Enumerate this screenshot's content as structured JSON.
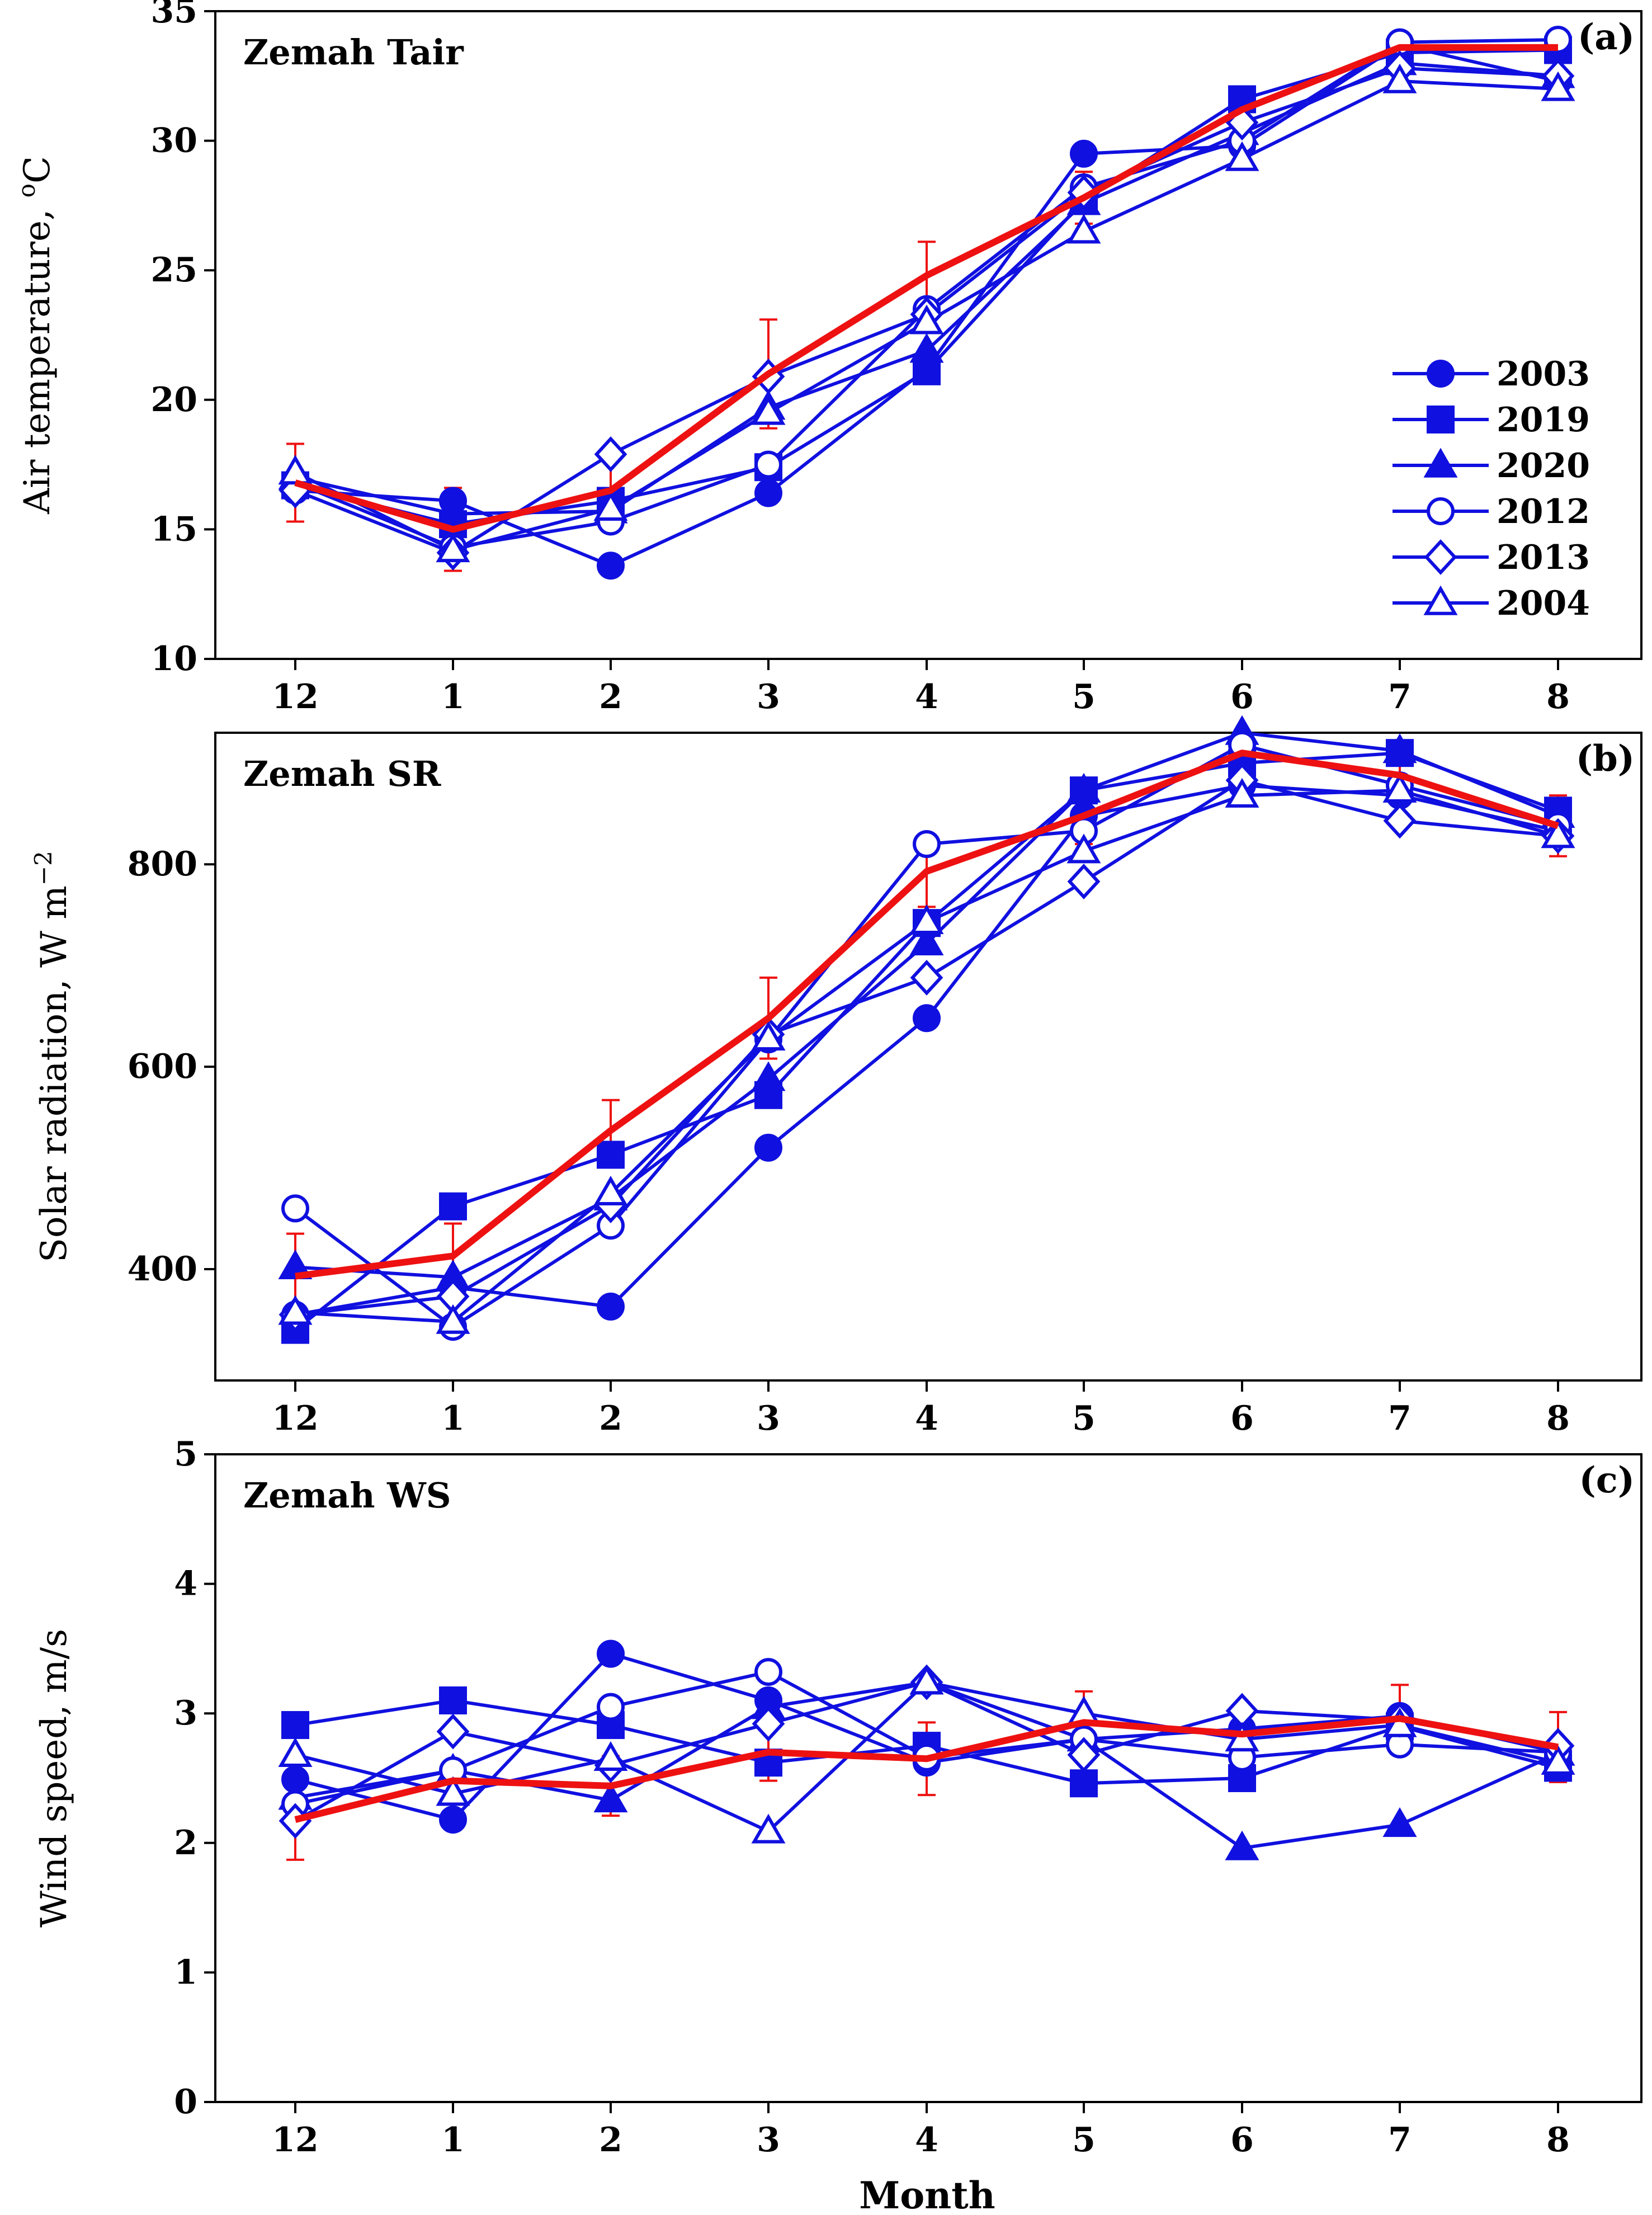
{
  "figure": {
    "x_title": "Month"
  },
  "legend": [
    {
      "label": "2003",
      "marker": "circle",
      "filled": true
    },
    {
      "label": "2019",
      "marker": "square",
      "filled": true
    },
    {
      "label": "2020",
      "marker": "triangle",
      "filled": true
    },
    {
      "label": "2012",
      "marker": "circle",
      "filled": false
    },
    {
      "label": "2013",
      "marker": "diamond",
      "filled": false
    },
    {
      "label": "2004",
      "marker": "triangle",
      "filled": false
    }
  ],
  "colors": {
    "series": "#1010e0",
    "mean": "#ee1111",
    "axis": "#000000"
  },
  "chart_data": [
    {
      "type": "line",
      "panel_label": "(a)",
      "title": "Zemah  Tair",
      "ylabel_main": "Air temperature, ",
      "ylabel_sup": "o",
      "ylabel_tail": "C",
      "categories": [
        "12",
        "1",
        "2",
        "3",
        "4",
        "5",
        "6",
        "7",
        "8"
      ],
      "ylim": [
        10,
        35
      ],
      "yticks": [
        10,
        15,
        20,
        25,
        30,
        35
      ],
      "series": [
        {
          "name": "2003",
          "values": [
            16.5,
            16.1,
            13.6,
            16.4,
            21.2,
            29.5,
            29.8,
            33.7,
            32.3
          ]
        },
        {
          "name": "2019",
          "values": [
            16.7,
            15.2,
            16.1,
            17.4,
            21.1,
            27.7,
            31.6,
            33.4,
            33.5
          ]
        },
        {
          "name": "2020",
          "values": [
            17.0,
            15.6,
            15.7,
            19.7,
            21.9,
            27.6,
            30.3,
            33.0,
            32.5
          ]
        },
        {
          "name": "2012",
          "values": [
            16.8,
            14.3,
            15.3,
            17.5,
            23.5,
            28.2,
            30.0,
            33.8,
            33.9
          ]
        },
        {
          "name": "2013",
          "values": [
            16.5,
            14.1,
            17.9,
            20.9,
            23.3,
            28.0,
            30.7,
            32.8,
            32.5
          ]
        },
        {
          "name": "2004",
          "values": [
            17.2,
            14.2,
            15.8,
            19.5,
            23.0,
            26.5,
            29.3,
            32.3,
            32.0
          ]
        },
        {
          "name": "mean",
          "values": [
            16.8,
            15.0,
            16.5,
            21.0,
            24.8,
            27.8,
            31.2,
            33.6,
            33.6
          ],
          "err": [
            1.5,
            1.6,
            1.5,
            2.1,
            1.3,
            1.0,
            0.8,
            0.5,
            0.4
          ]
        }
      ]
    },
    {
      "type": "line",
      "panel_label": "(b)",
      "title": "Zemah  SR",
      "ylabel_main": "Solar  radiation,  W m",
      "ylabel_sup": "−2",
      "ylabel_tail": "",
      "categories": [
        "12",
        "1",
        "2",
        "3",
        "4",
        "5",
        "6",
        "7",
        "8"
      ],
      "ylim": [
        290,
        930
      ],
      "yticks": [
        400,
        600,
        800
      ],
      "series": [
        {
          "name": "2003",
          "values": [
            355,
            382,
            363,
            520,
            648,
            848,
            878,
            868,
            833
          ]
        },
        {
          "name": "2019",
          "values": [
            340,
            462,
            513,
            572,
            742,
            873,
            900,
            910,
            853
          ]
        },
        {
          "name": "2020",
          "values": [
            402,
            392,
            470,
            588,
            722,
            873,
            930,
            912,
            848
          ]
        },
        {
          "name": "2012",
          "values": [
            460,
            343,
            443,
            627,
            820,
            833,
            918,
            878,
            838
          ]
        },
        {
          "name": "2013",
          "values": [
            355,
            373,
            463,
            632,
            688,
            783,
            883,
            843,
            828
          ]
        },
        {
          "name": "2004",
          "values": [
            357,
            348,
            475,
            628,
            743,
            813,
            868,
            873,
            828
          ]
        },
        {
          "name": "mean",
          "values": [
            393,
            413,
            537,
            648,
            793,
            848,
            910,
            888,
            838
          ],
          "err": [
            42,
            32,
            30,
            40,
            35,
            28,
            12,
            22,
            30
          ]
        }
      ]
    },
    {
      "type": "line",
      "panel_label": "(c)",
      "title": "Zemah  WS",
      "ylabel_main": "Wind  speed,  m/s",
      "ylabel_sup": "",
      "ylabel_tail": "",
      "categories": [
        "12",
        "1",
        "2",
        "3",
        "4",
        "5",
        "6",
        "7",
        "8"
      ],
      "ylim": [
        0,
        5
      ],
      "yticks": [
        0,
        1,
        2,
        3,
        4,
        5
      ],
      "series": [
        {
          "name": "2003",
          "values": [
            2.49,
            2.18,
            3.46,
            3.1,
            2.62,
            2.8,
            2.88,
            2.98,
            2.7
          ]
        },
        {
          "name": "2019",
          "values": [
            2.91,
            3.1,
            2.91,
            2.62,
            2.75,
            2.46,
            2.5,
            2.9,
            2.58
          ]
        },
        {
          "name": "2020",
          "values": [
            2.35,
            2.56,
            2.33,
            3.05,
            3.24,
            2.8,
            1.96,
            2.14,
            2.69
          ]
        },
        {
          "name": "2012",
          "values": [
            2.3,
            2.56,
            3.05,
            3.32,
            2.66,
            2.8,
            2.66,
            2.76,
            2.7
          ]
        },
        {
          "name": "2013",
          "values": [
            2.17,
            2.86,
            2.6,
            2.92,
            3.24,
            2.68,
            3.02,
            2.95,
            2.75
          ]
        },
        {
          "name": "2004",
          "values": [
            2.68,
            2.38,
            2.65,
            2.09,
            3.24,
            3.0,
            2.8,
            2.91,
            2.62
          ]
        },
        {
          "name": "mean",
          "values": [
            2.18,
            2.48,
            2.44,
            2.7,
            2.65,
            2.93,
            2.84,
            2.96,
            2.74
          ],
          "err": [
            0.31,
            0.15,
            0.23,
            0.22,
            0.28,
            0.24,
            0.12,
            0.26,
            0.27
          ]
        }
      ]
    }
  ]
}
